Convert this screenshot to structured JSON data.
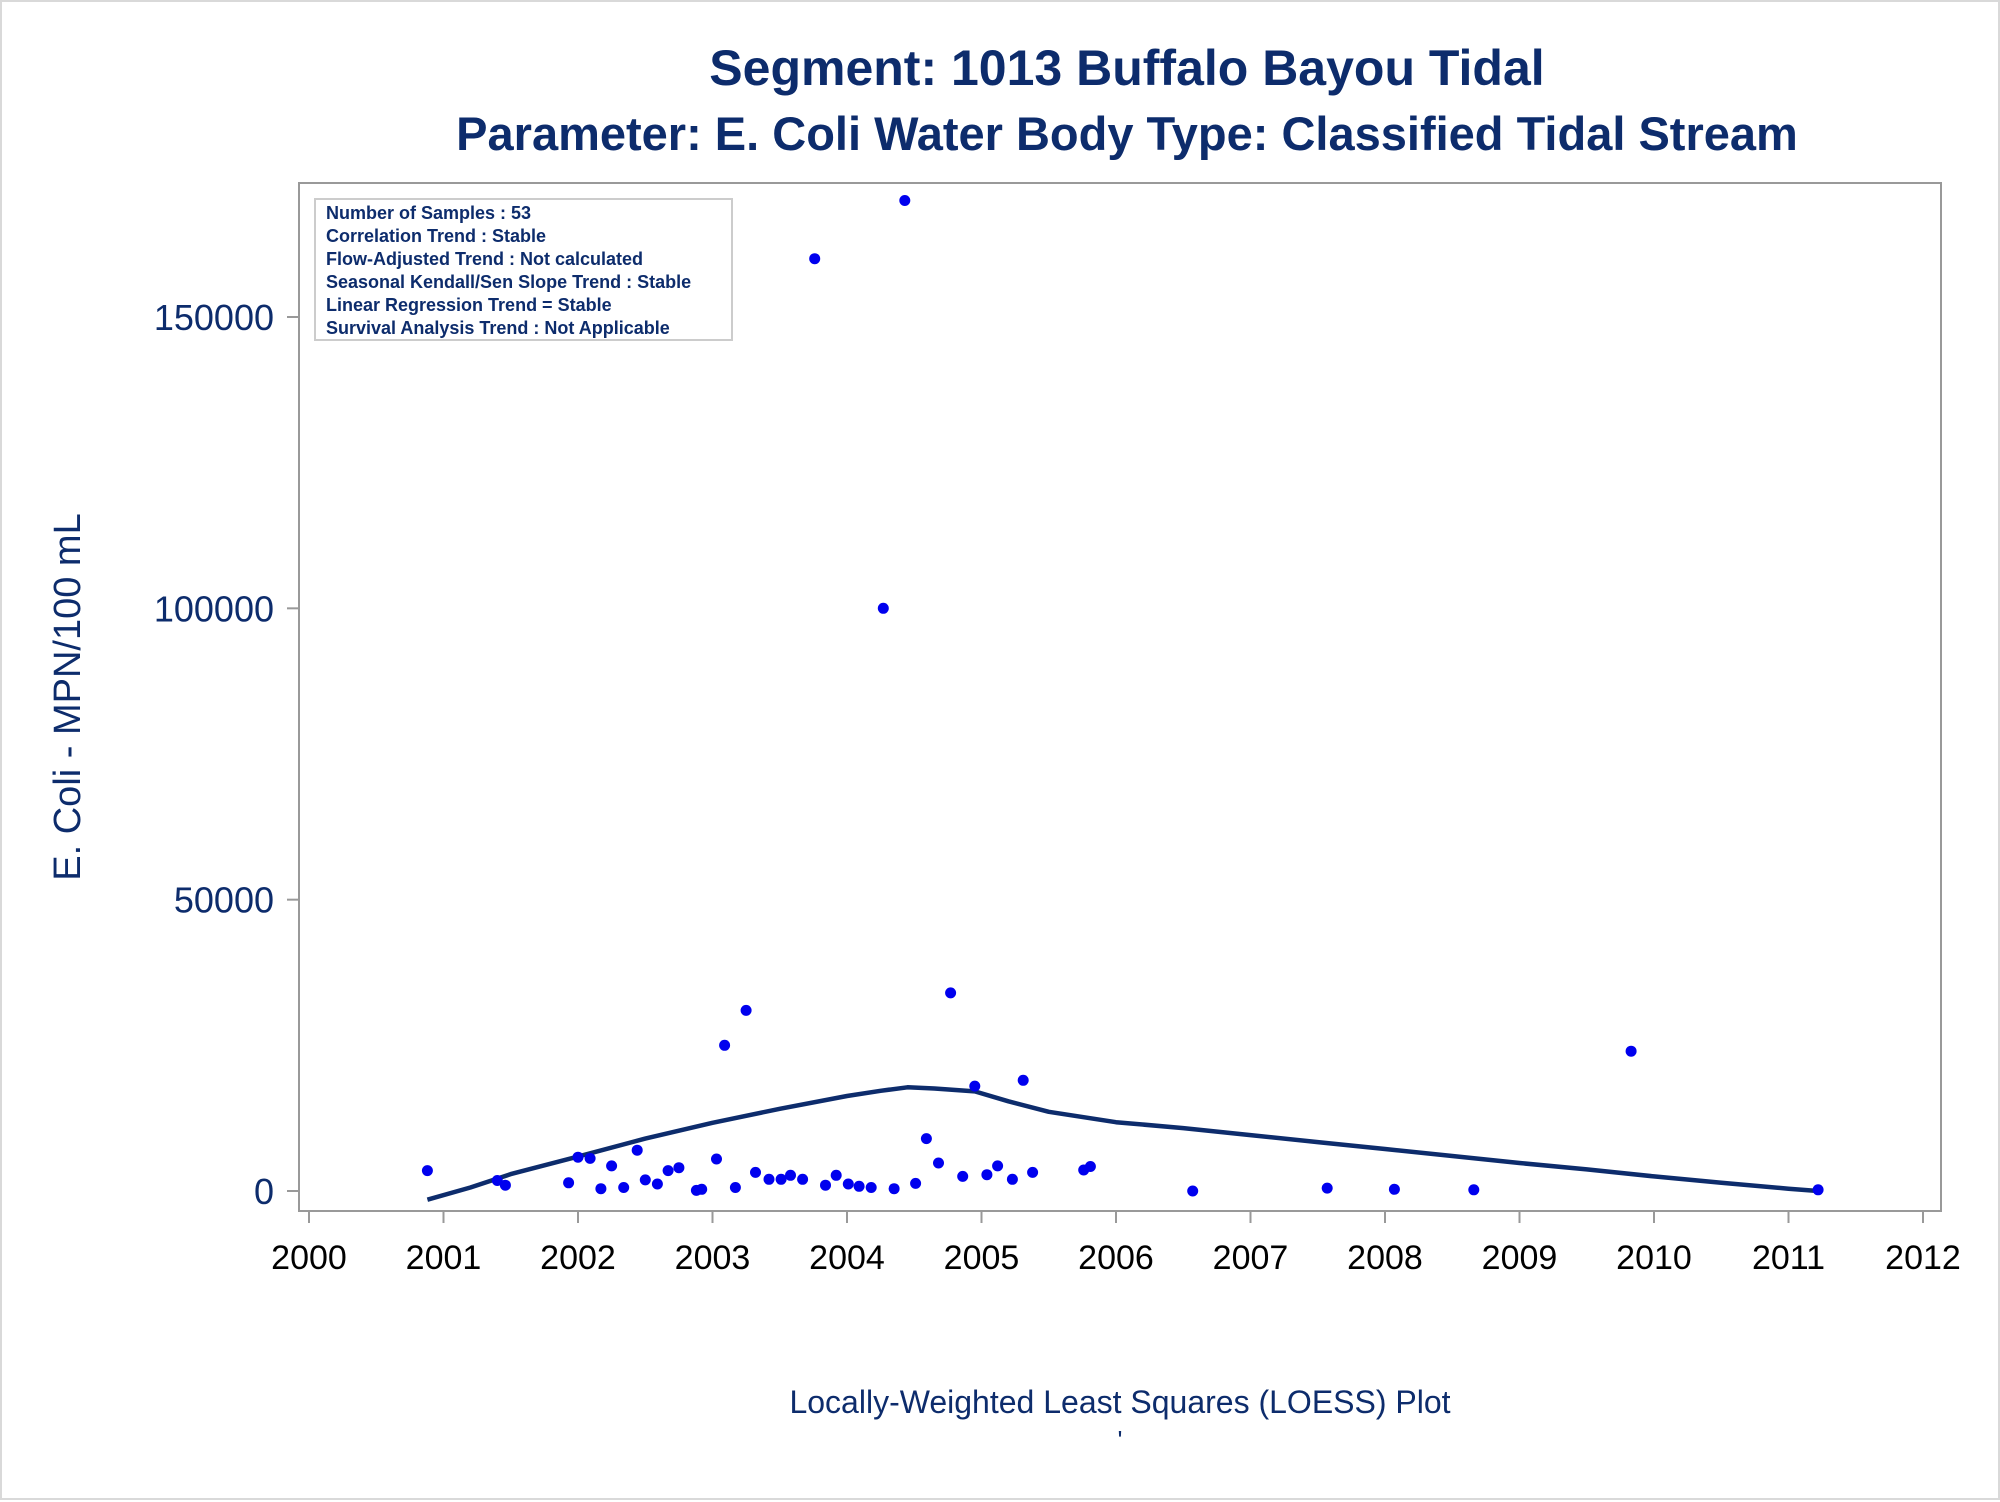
{
  "chart_data": {
    "type": "scatter",
    "title": "Segment: 1013  Buffalo Bayou Tidal",
    "subtitle": "Parameter: E. Coli   Water Body Type: Classified Tidal Stream",
    "xlabel": "Locally-Weighted Least Squares (LOESS) Plot",
    "ylabel": "E. Coli - MPN/100 mL",
    "footnote": "'",
    "xlim": [
      2000,
      2012
    ],
    "ylim": [
      -3500,
      172000
    ],
    "x_ticks": [
      "2000",
      "2001",
      "2002",
      "2003",
      "2004",
      "2005",
      "2006",
      "2007",
      "2008",
      "2009",
      "2010",
      "2011",
      "2012"
    ],
    "x_tick_values": [
      2000,
      2001,
      2002,
      2003,
      2004,
      2005,
      2006,
      2007,
      2008,
      2009,
      2010,
      2011,
      2012
    ],
    "y_ticks": [
      "0",
      "50000",
      "100000",
      "150000"
    ],
    "y_tick_values": [
      0,
      50000,
      100000,
      150000
    ],
    "grid": false,
    "stats_box": [
      "Number of Samples : 53",
      "Correlation Trend : Stable",
      "Flow-Adjusted Trend : Not calculated",
      "Seasonal Kendall/Sen Slope Trend : Stable",
      "Linear Regression Trend = Stable",
      "Survival Analysis Trend : Not Applicable"
    ],
    "stats_box_position": "top-left",
    "colors": {
      "points": "#0000ee",
      "loess": "#0d2c6c",
      "text": "#0d2c6c",
      "axis": "#999999"
    },
    "series": [
      {
        "name": "Samples",
        "type": "scatter",
        "x": [
          2000.88,
          2001.4,
          2001.46,
          2001.93,
          2002.0,
          2002.09,
          2002.17,
          2002.25,
          2002.34,
          2002.44,
          2002.5,
          2002.59,
          2002.67,
          2002.75,
          2002.88,
          2002.92,
          2003.03,
          2003.09,
          2003.17,
          2003.25,
          2003.32,
          2003.42,
          2003.51,
          2003.58,
          2003.67,
          2003.76,
          2003.84,
          2003.92,
          2004.01,
          2004.09,
          2004.18,
          2004.27,
          2004.35,
          2004.43,
          2004.51,
          2004.59,
          2004.68,
          2004.77,
          2004.86,
          2004.95,
          2005.04,
          2005.12,
          2005.23,
          2005.31,
          2005.38,
          2005.76,
          2005.81,
          2006.57,
          2007.57,
          2008.07,
          2008.66,
          2009.83,
          2011.22
        ],
        "y": [
          3500,
          1800,
          1000,
          1400,
          5800,
          5600,
          400,
          4300,
          600,
          7000,
          1900,
          1200,
          3500,
          4000,
          100,
          300,
          5500,
          25000,
          600,
          31000,
          3200,
          2000,
          2000,
          2700,
          2000,
          160000,
          1000,
          2700,
          1200,
          800,
          600,
          100000,
          400,
          170000,
          1300,
          9000,
          4800,
          34000,
          2500,
          18000,
          2800,
          4300,
          2000,
          19000,
          3200,
          3600,
          4200,
          0,
          500,
          300,
          200,
          24000,
          200
        ]
      },
      {
        "name": "LOESS",
        "type": "line",
        "x": [
          2000.88,
          2001.2,
          2001.5,
          2002.0,
          2002.5,
          2003.0,
          2003.5,
          2004.0,
          2004.25,
          2004.45,
          2004.65,
          2004.95,
          2005.2,
          2005.5,
          2006.0,
          2006.5,
          2007.0,
          2007.5,
          2008.0,
          2008.5,
          2009.0,
          2009.5,
          2010.0,
          2010.5,
          2011.0,
          2011.22
        ],
        "y": [
          -1500,
          600,
          2900,
          5900,
          9000,
          11700,
          14100,
          16300,
          17200,
          17800,
          17600,
          17100,
          15400,
          13600,
          11800,
          10800,
          9600,
          8400,
          7200,
          6000,
          4800,
          3700,
          2500,
          1400,
          400,
          0
        ]
      }
    ]
  }
}
